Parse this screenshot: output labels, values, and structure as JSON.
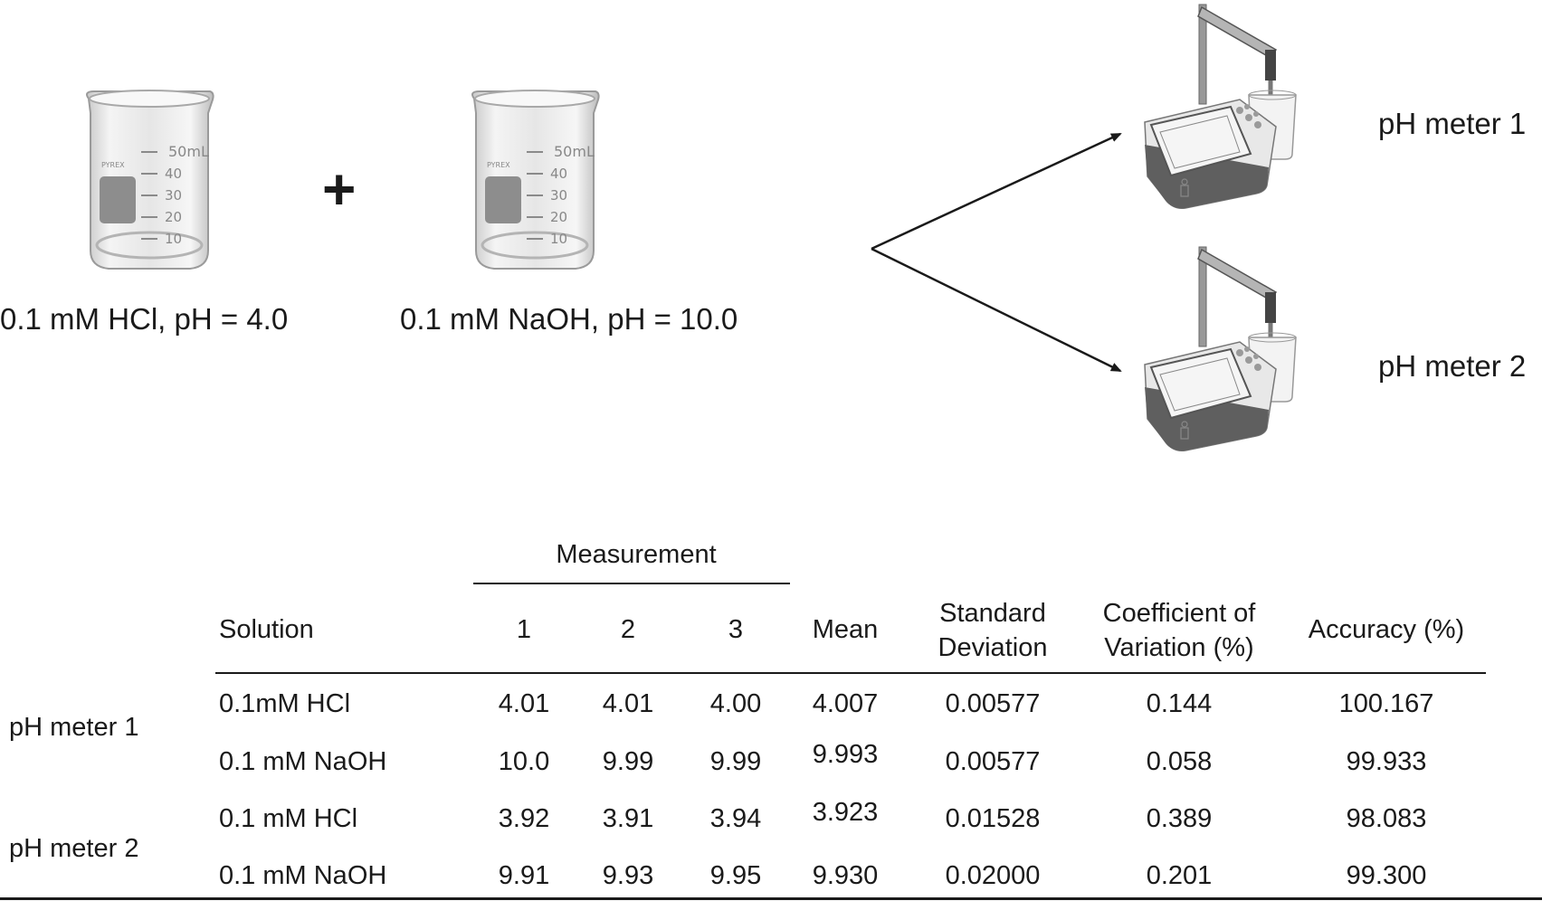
{
  "beakers": [
    {
      "caption": "0.1 mM HCl, pH = 4.0",
      "mark_top": "50mL",
      "brand": "PYREX",
      "marks": [
        "40",
        "30",
        "20",
        "10"
      ]
    },
    {
      "caption": "0.1 mM NaOH, pH = 10.0",
      "mark_top": "50mL",
      "brand": "PYREX",
      "marks": [
        "40",
        "30",
        "20",
        "10"
      ]
    }
  ],
  "plus_sign": "+",
  "meters": [
    {
      "label": "pH meter 1"
    },
    {
      "label": "pH meter 2"
    }
  ],
  "table": {
    "group_header": "Measurement",
    "headers": {
      "solution": "Solution",
      "m1": "1",
      "m2": "2",
      "m3": "3",
      "mean": "Mean",
      "sd_line1": "Standard",
      "sd_line2": "Deviation",
      "cv_line1": "Coefficient of",
      "cv_line2": "Variation (%)",
      "accuracy": "Accuracy (%)"
    },
    "groups": [
      {
        "meter": "pH meter 1",
        "rows": [
          {
            "solution": "0.1mM HCl",
            "m1": "4.01",
            "m2": "4.01",
            "m3": "4.00",
            "mean": "4.007",
            "sd": "0.00577",
            "cv": "0.144",
            "accuracy": "100.167"
          },
          {
            "solution": "0.1 mM NaOH",
            "m1": "10.0",
            "m2": "9.99",
            "m3": "9.99",
            "mean": "9.993",
            "sd": "0.00577",
            "cv": "0.058",
            "accuracy": "99.933"
          }
        ]
      },
      {
        "meter": "pH meter 2",
        "rows": [
          {
            "solution": "0.1 mM HCl",
            "m1": "3.92",
            "m2": "3.91",
            "m3": "3.94",
            "mean": "3.923",
            "sd": "0.01528",
            "cv": "0.389",
            "accuracy": "98.083"
          },
          {
            "solution": "0.1 mM NaOH",
            "m1": "9.91",
            "m2": "9.93",
            "m3": "9.95",
            "mean": "9.930",
            "sd": "0.02000",
            "cv": "0.201",
            "accuracy": "99.300"
          }
        ]
      }
    ]
  }
}
